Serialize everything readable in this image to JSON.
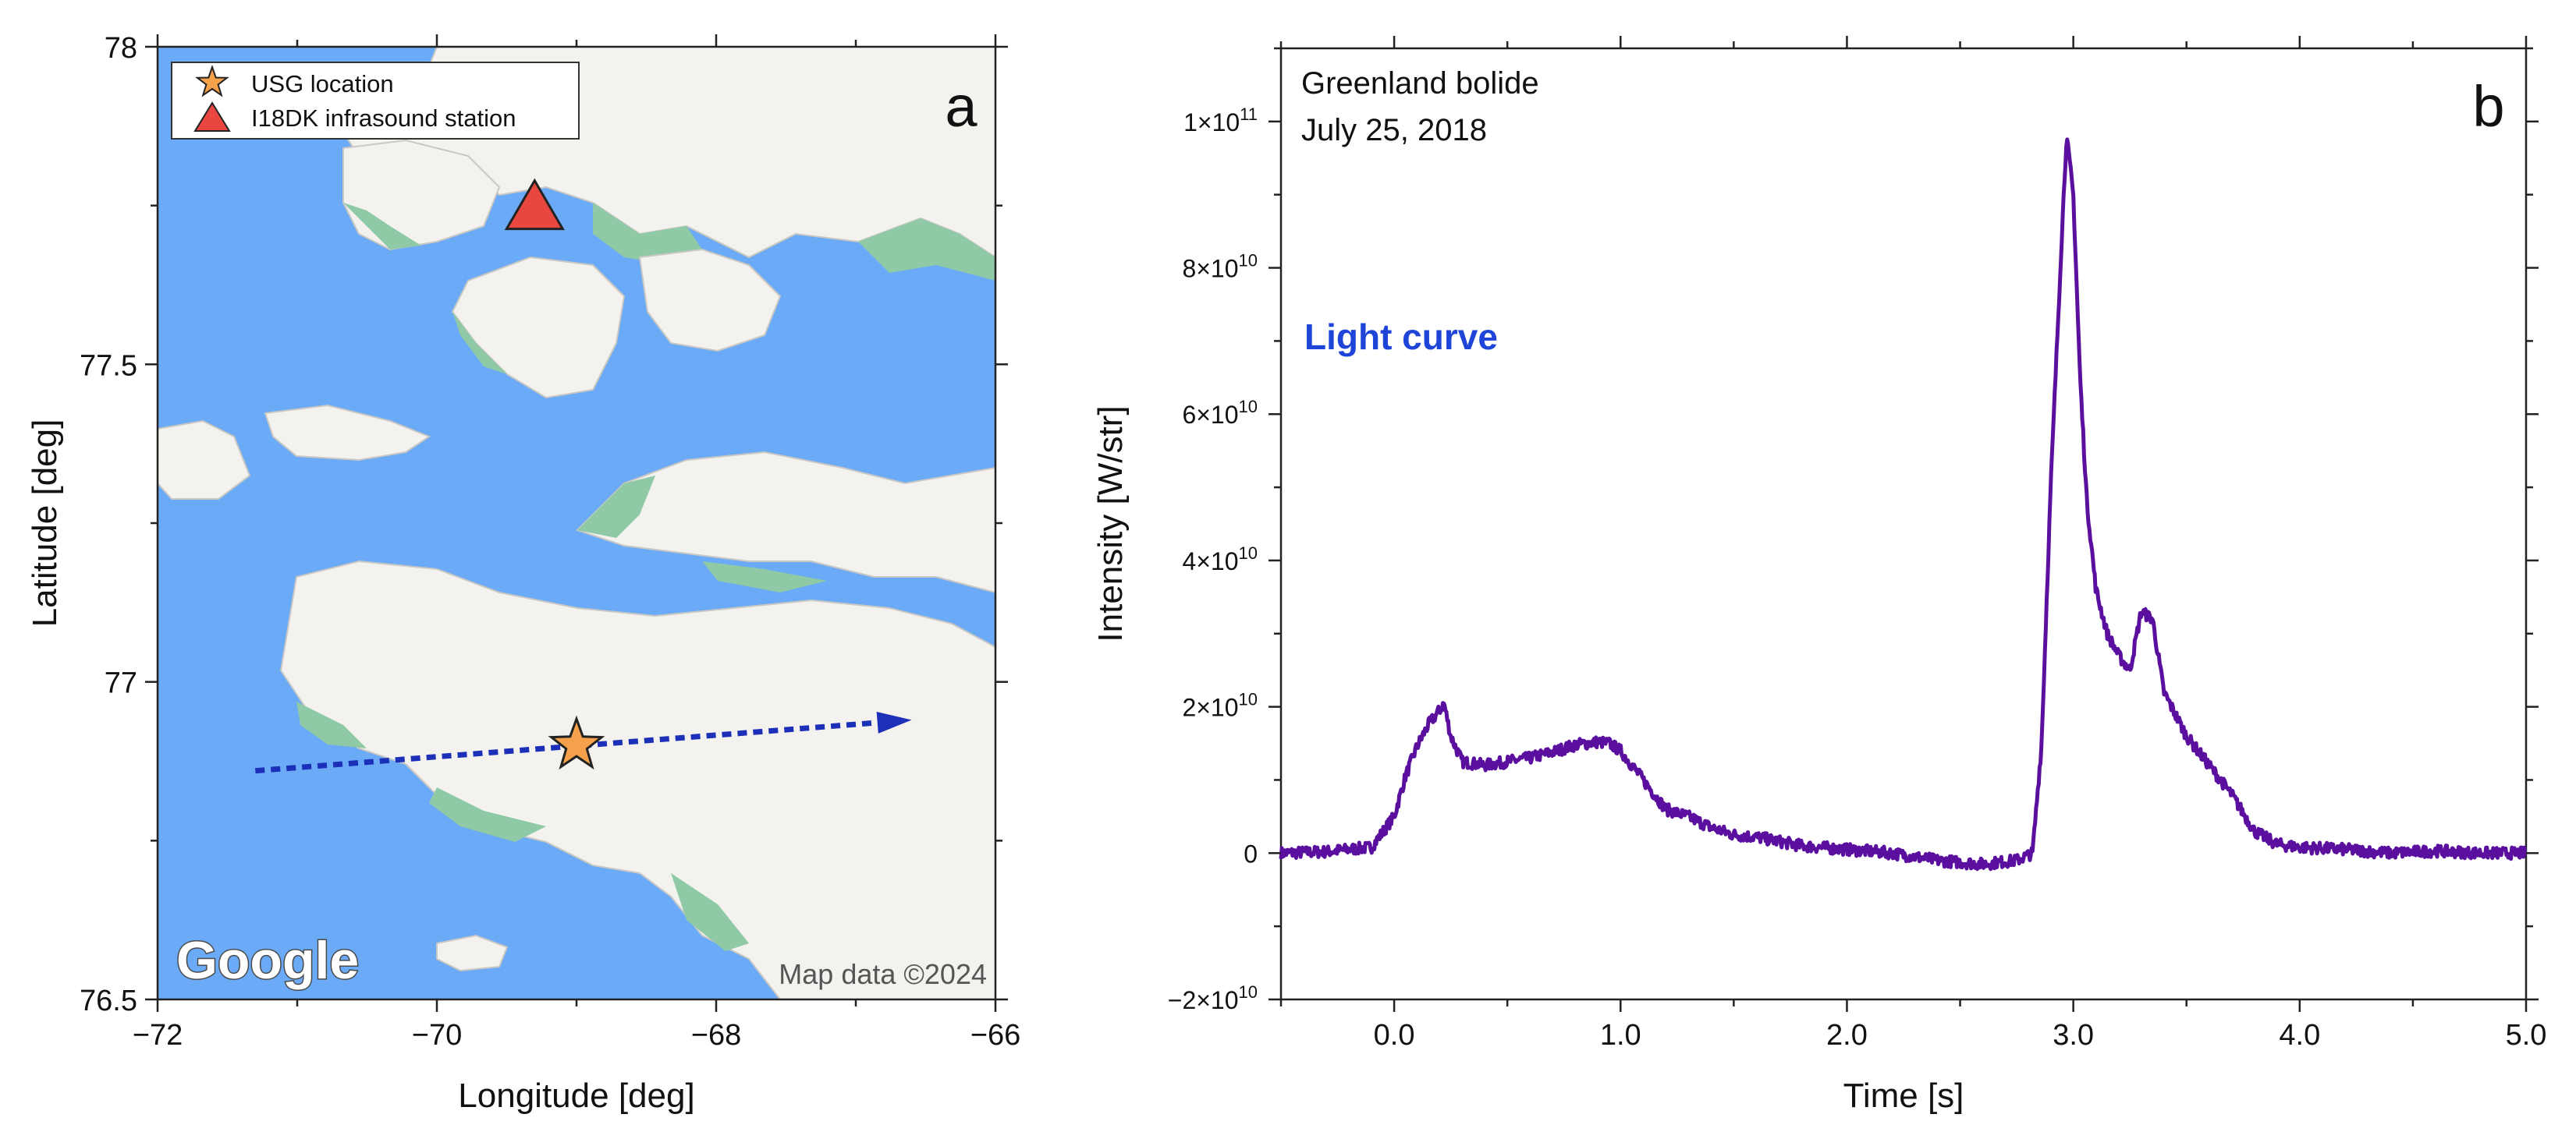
{
  "panel_a": {
    "panel_label": "a",
    "legend": [
      {
        "symbol": "star",
        "label": "USG location",
        "color": "#f5a04a"
      },
      {
        "symbol": "triangle",
        "label": "I18DK infrasound station",
        "color": "#e8473f"
      }
    ],
    "watermark": "Google",
    "attribution": "Map data ©2024",
    "colors": {
      "water": "#6aaaf6",
      "land": "#f3f2ef",
      "vegetation": "#8fc9a6",
      "trajectory": "#1b2fb8"
    }
  },
  "panel_b": {
    "panel_label": "b",
    "annotation_line1": "Greenland bolide",
    "annotation_line2": "July 25, 2018",
    "curve_label": "Light curve",
    "colors": {
      "curve": "#5a0f9e",
      "curve_label": "#1f45d8"
    }
  },
  "chart_data": [
    {
      "type": "scatter",
      "title": "",
      "xlabel": "Longitude [deg]",
      "ylabel": "Latitude [deg]",
      "xlim": [
        -72,
        -66
      ],
      "ylim": [
        76.5,
        78
      ],
      "xticks": [
        "−72",
        "−70",
        "−68",
        "−66"
      ],
      "yticks": [
        "76.5",
        "77",
        "77.5",
        "78"
      ],
      "series": [
        {
          "name": "USG location",
          "x": [
            -69.0
          ],
          "y": [
            76.9
          ]
        },
        {
          "name": "I18DK infrasound station",
          "x": [
            -69.3
          ],
          "y": [
            77.75
          ]
        },
        {
          "name": "trajectory",
          "x": [
            -71.3,
            -66.6
          ],
          "y": [
            76.86,
            76.94
          ]
        }
      ]
    },
    {
      "type": "line",
      "title": "",
      "xlabel": "Time [s]",
      "ylabel": "Intensity [W/str]",
      "xlim": [
        -0.5,
        5.0
      ],
      "ylim": [
        -20000000000.0,
        110000000000.0
      ],
      "xticks": [
        "0.0",
        "1.0",
        "2.0",
        "3.0",
        "4.0",
        "5.0"
      ],
      "yticks": [
        {
          "value": -20000000000.0,
          "mant": "−2×10",
          "exp": "10"
        },
        {
          "value": 0,
          "mant": "0",
          "exp": ""
        },
        {
          "value": 20000000000.0,
          "mant": "2×10",
          "exp": "10"
        },
        {
          "value": 40000000000.0,
          "mant": "4×10",
          "exp": "10"
        },
        {
          "value": 60000000000.0,
          "mant": "6×10",
          "exp": "10"
        },
        {
          "value": 80000000000.0,
          "mant": "8×10",
          "exp": "10"
        },
        {
          "value": 100000000000.0,
          "mant": "1×10",
          "exp": "11"
        }
      ],
      "series": [
        {
          "name": "Light curve",
          "x": [
            -0.5,
            -0.3,
            -0.1,
            0.0,
            0.05,
            0.1,
            0.15,
            0.2,
            0.22,
            0.25,
            0.3,
            0.4,
            0.5,
            0.6,
            0.7,
            0.8,
            0.9,
            0.95,
            1.0,
            1.05,
            1.1,
            1.2,
            1.3,
            1.4,
            1.5,
            1.6,
            1.8,
            2.0,
            2.2,
            2.4,
            2.6,
            2.75,
            2.82,
            2.86,
            2.9,
            2.95,
            2.97,
            3.0,
            3.03,
            3.06,
            3.1,
            3.15,
            3.2,
            3.25,
            3.3,
            3.35,
            3.4,
            3.5,
            3.6,
            3.7,
            3.8,
            3.9,
            4.0,
            4.2,
            4.4,
            4.6,
            4.8,
            5.0
          ],
          "y": [
            0,
            200000000.0,
            800000000.0,
            5000000000.0,
            10500000000.0,
            14500000000.0,
            17500000000.0,
            19500000000.0,
            20500000000.0,
            16000000000.0,
            12500000000.0,
            12000000000.0,
            12500000000.0,
            13000000000.0,
            13800000000.0,
            14800000000.0,
            15200000000.0,
            15000000000.0,
            14000000000.0,
            12000000000.0,
            10000000000.0,
            6000000000.0,
            5000000000.0,
            3500000000.0,
            2500000000.0,
            2200000000.0,
            1000000000.0,
            500000000.0,
            0,
            -1000000000.0,
            -1500000000.0,
            -1000000000.0,
            0,
            15000000000.0,
            50000000000.0,
            85000000000.0,
            98000000000.0,
            90000000000.0,
            65000000000.0,
            48000000000.0,
            36000000000.0,
            30000000000.0,
            27000000000.0,
            25000000000.0,
            33000000000.0,
            32000000000.0,
            22000000000.0,
            16000000000.0,
            12000000000.0,
            8000000000.0,
            3000000000.0,
            1200000000.0,
            800000000.0,
            500000000.0,
            0,
            300000000.0,
            0,
            0
          ]
        }
      ]
    }
  ]
}
